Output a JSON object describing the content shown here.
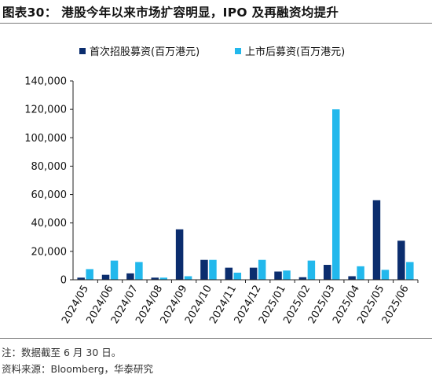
{
  "title": "图表30：  港股今年以来市场扩容明显，IPO 及再融资均提升",
  "notes": {
    "note": "注：数据截至 6 月 30 日。",
    "source": "资料来源：Bloomberg，华泰研究"
  },
  "colors": {
    "ipo": "#0b2d6e",
    "refinancing": "#22b8ec"
  },
  "chart_data": {
    "type": "bar",
    "categories": [
      "2024/05",
      "2024/06",
      "2024/07",
      "2024/08",
      "2024/09",
      "2024/10",
      "2024/11",
      "2024/12",
      "2025/01",
      "2025/02",
      "2025/03",
      "2025/04",
      "2025/05",
      "2025/06"
    ],
    "series": [
      {
        "name": "首次招股募资(百万港元)",
        "values": [
          1500,
          3500,
          4500,
          1500,
          35500,
          14000,
          8500,
          8500,
          5800,
          1800,
          10500,
          2500,
          56000,
          27500
        ]
      },
      {
        "name": "上市后募资(百万港元)",
        "values": [
          7500,
          13500,
          12500,
          1500,
          2500,
          14000,
          5000,
          14000,
          6500,
          13500,
          120000,
          9500,
          7000,
          12500
        ]
      }
    ],
    "ylim": [
      0,
      140000
    ],
    "yticks": [
      0,
      20000,
      40000,
      60000,
      80000,
      100000,
      120000,
      140000
    ],
    "ytick_labels": [
      "0",
      "20,000",
      "40,000",
      "60,000",
      "80,000",
      "100,000",
      "120,000",
      "140,000"
    ],
    "legend_position": "top",
    "grid": false
  }
}
